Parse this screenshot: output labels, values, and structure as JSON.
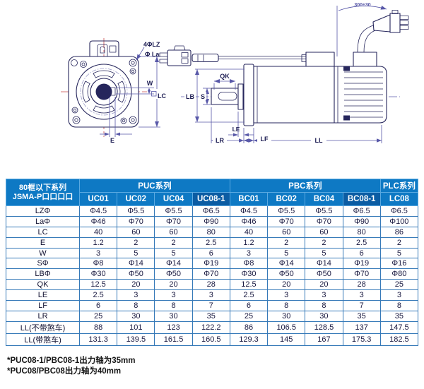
{
  "diagram": {
    "front_labels": {
      "holes": "4ΦLZ",
      "flange": "Φ La",
      "w": "W",
      "lc": "LC",
      "e": "E"
    },
    "side_labels": {
      "qk": "QK",
      "lb": "LB",
      "s": "S",
      "le": "LE",
      "lr": "LR",
      "lf": "LF",
      "ll": "LL",
      "cable_length": "300±30"
    }
  },
  "table": {
    "corner_header": {
      "line1": "80框以下系列",
      "line2": "JSMA-P口口口口"
    },
    "groups": [
      {
        "label": "PUC系列",
        "span": 4
      },
      {
        "label": "PBC系列",
        "span": 4
      },
      {
        "label": "PLC系列",
        "span": 1
      }
    ],
    "models": [
      {
        "label": "UC01",
        "dark": false
      },
      {
        "label": "UC02",
        "dark": false
      },
      {
        "label": "UC04",
        "dark": false
      },
      {
        "label": "UC08-1",
        "dark": true
      },
      {
        "label": "BC01",
        "dark": false
      },
      {
        "label": "BC02",
        "dark": false
      },
      {
        "label": "BC04",
        "dark": false
      },
      {
        "label": "BC08-1",
        "dark": true
      },
      {
        "label": "LC08",
        "dark": false
      }
    ],
    "rows": [
      {
        "label": "LZΦ",
        "values": [
          "Φ4.5",
          "Φ5.5",
          "Φ5.5",
          "Φ6.5",
          "Φ4.5",
          "Φ5.5",
          "Φ5.5",
          "Φ6.5",
          "Φ6.5"
        ]
      },
      {
        "label": "LaΦ",
        "values": [
          "Φ46",
          "Φ70",
          "Φ70",
          "Φ90",
          "Φ46",
          "Φ70",
          "Φ70",
          "Φ90",
          "Φ100"
        ]
      },
      {
        "label": "LC",
        "values": [
          "40",
          "60",
          "60",
          "80",
          "40",
          "60",
          "60",
          "80",
          "86"
        ]
      },
      {
        "label": "E",
        "values": [
          "1.2",
          "2",
          "2",
          "2.5",
          "1.2",
          "2",
          "2",
          "2.5",
          "2"
        ]
      },
      {
        "label": "W",
        "values": [
          "3",
          "5",
          "5",
          "6",
          "3",
          "5",
          "5",
          "6",
          "5"
        ]
      },
      {
        "label": "SΦ",
        "values": [
          "Φ8",
          "Φ14",
          "Φ14",
          "Φ19",
          "Φ8",
          "Φ14",
          "Φ14",
          "Φ19",
          "Φ16"
        ]
      },
      {
        "label": "LBΦ",
        "values": [
          "Φ30",
          "Φ50",
          "Φ50",
          "Φ70",
          "Φ30",
          "Φ50",
          "Φ50",
          "Φ70",
          "Φ80"
        ]
      },
      {
        "label": "QK",
        "values": [
          "12.5",
          "20",
          "20",
          "28",
          "12.5",
          "20",
          "20",
          "28",
          "25"
        ]
      },
      {
        "label": "LE",
        "values": [
          "2.5",
          "3",
          "3",
          "3",
          "2.5",
          "3",
          "3",
          "3",
          "3"
        ]
      },
      {
        "label": "LF",
        "values": [
          "6",
          "8",
          "8",
          "7",
          "6",
          "8",
          "8",
          "7",
          "8"
        ]
      },
      {
        "label": "LR",
        "values": [
          "25",
          "30",
          "30",
          "35",
          "25",
          "30",
          "30",
          "35",
          "35"
        ]
      },
      {
        "label": "LL(不带煞车)",
        "values": [
          "88",
          "101",
          "123",
          "122.2",
          "86",
          "106.5",
          "128.5",
          "137",
          "147.5"
        ]
      },
      {
        "label": "LL(带煞车)",
        "values": [
          "131.3",
          "139.5",
          "161.5",
          "160.5",
          "129.3",
          "145",
          "167",
          "175.3",
          "182.5"
        ]
      }
    ]
  },
  "footnotes": [
    "*PUC08-1/PBC08-1出力轴为35mm",
    "*PUC08/PBC08出力轴为40mm"
  ],
  "colors": {
    "header_bg": "#0e79c4",
    "header_dark": "#0b5ca3",
    "table_border": "#3579b8",
    "header_border": "#5aa9e1",
    "outline": "#26265c",
    "dimension": "#5858a8",
    "centerline": "#c84848"
  }
}
